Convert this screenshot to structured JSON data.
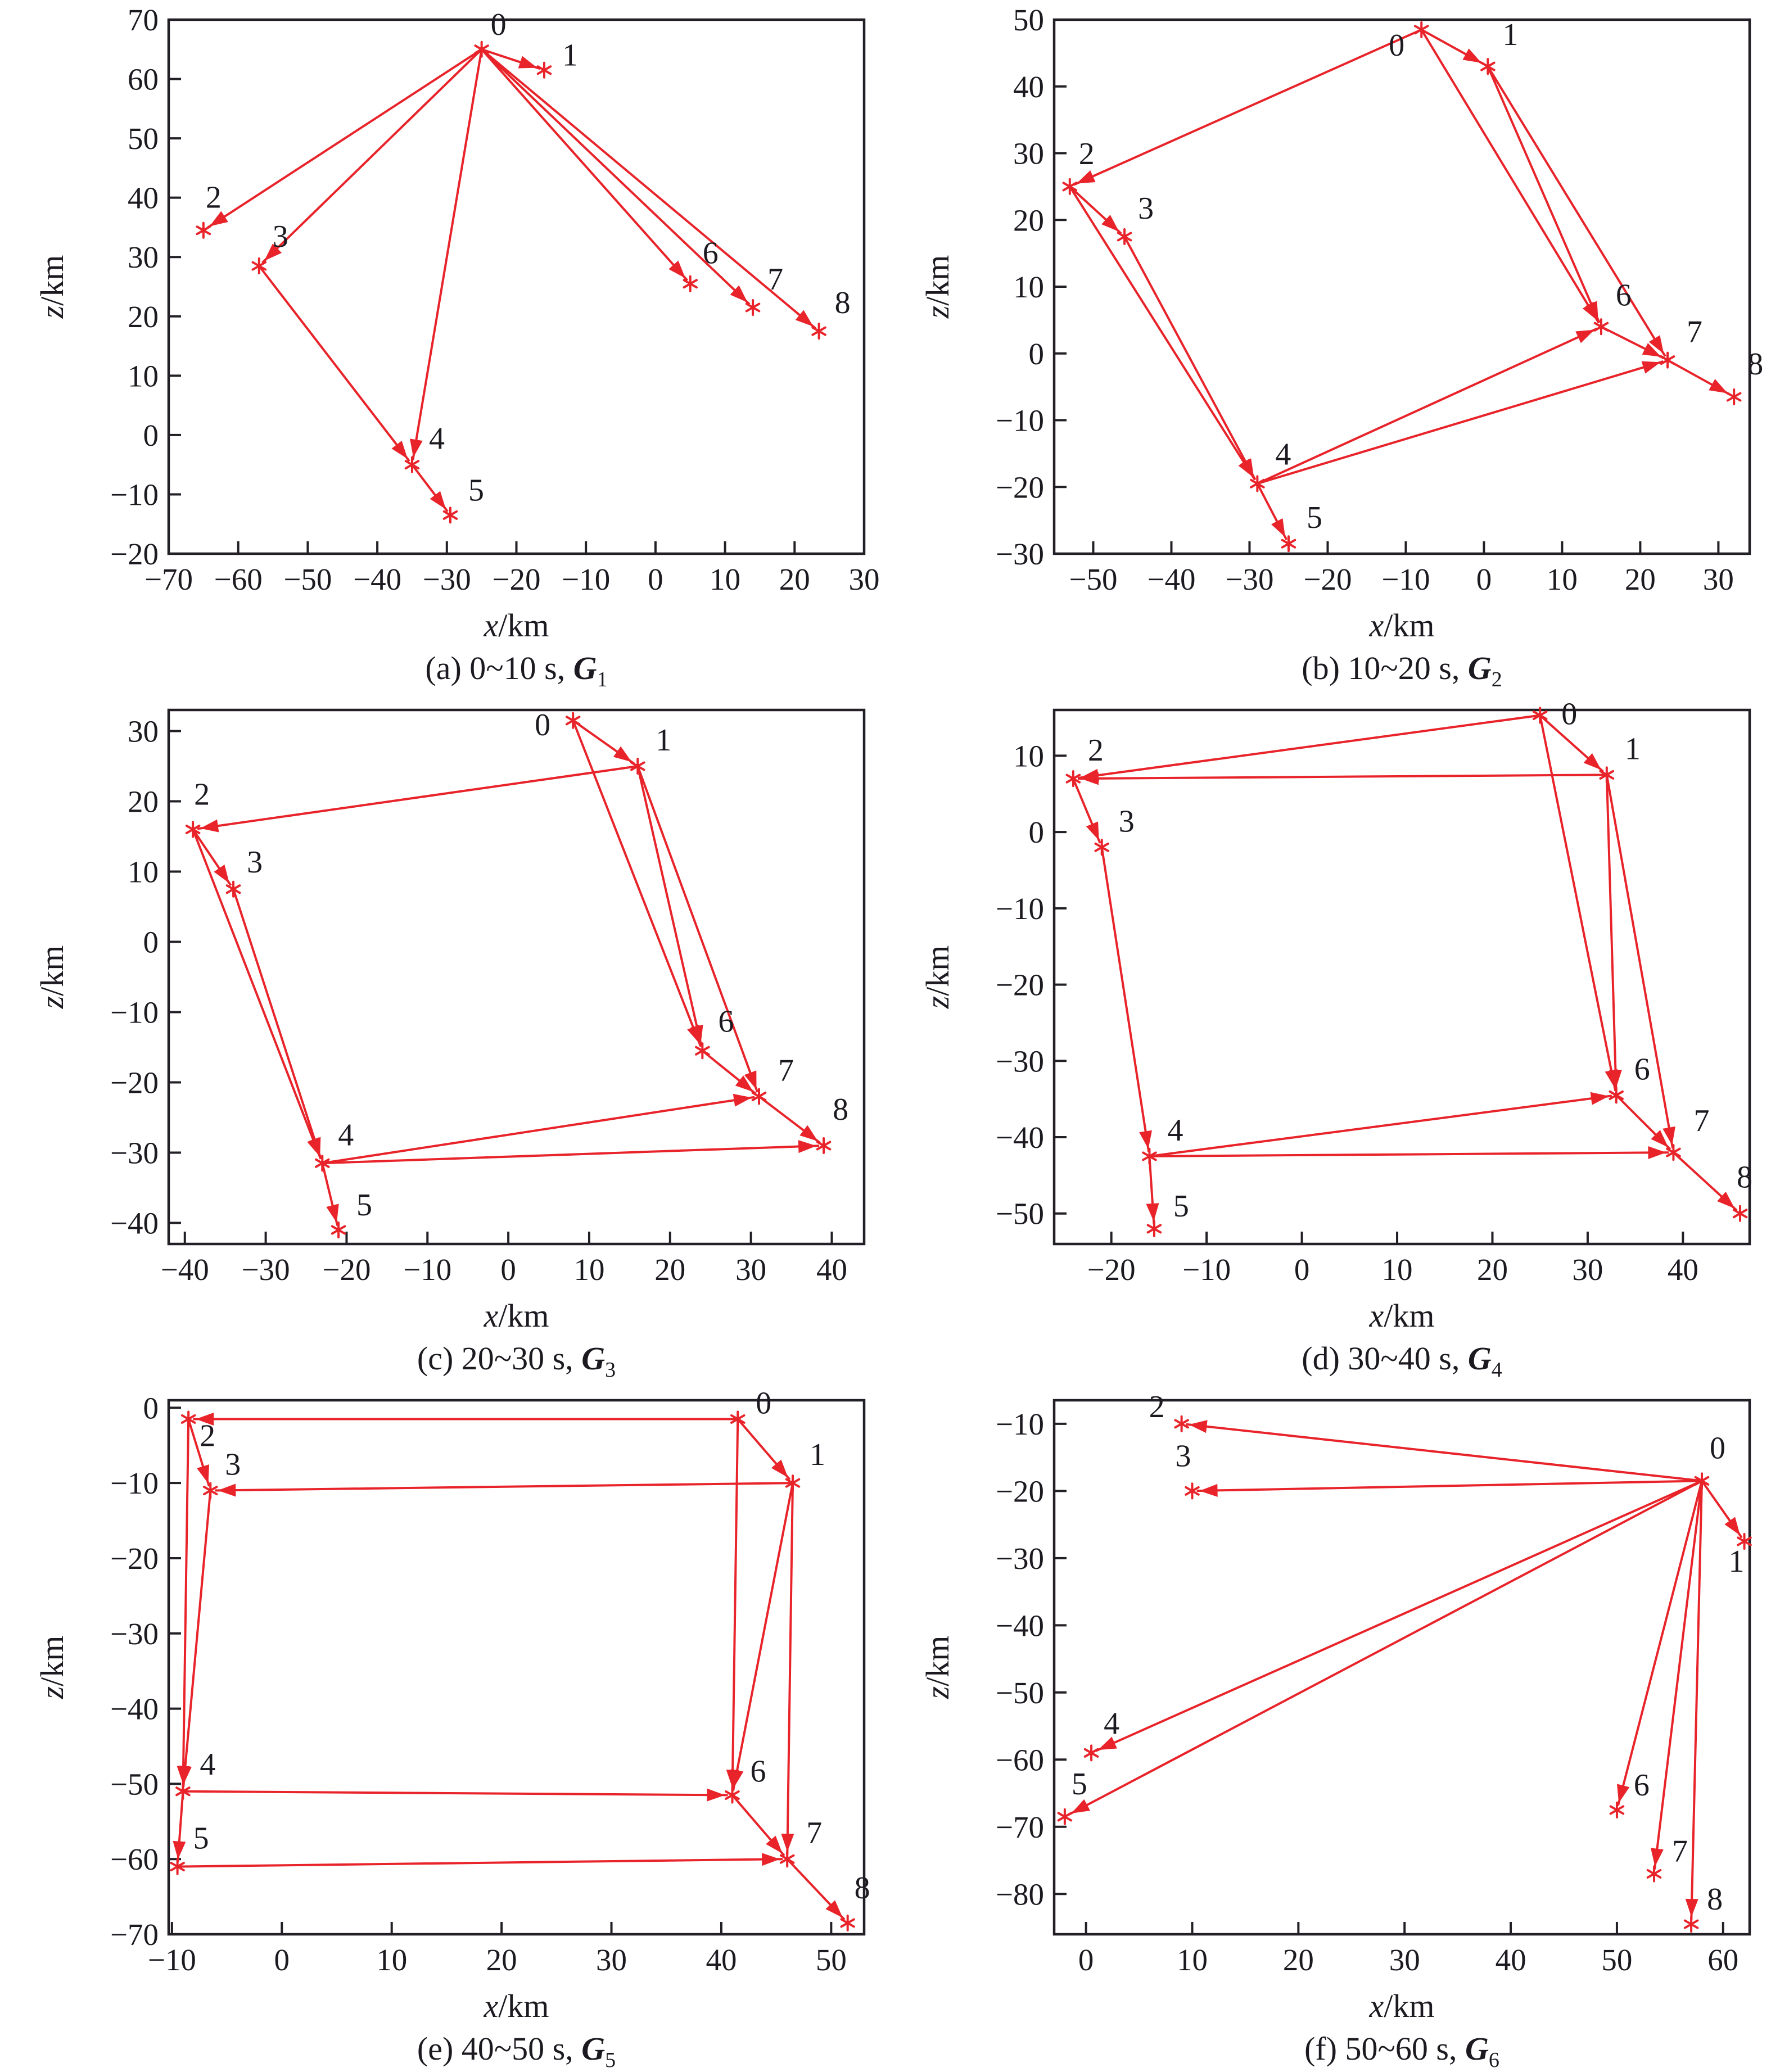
{
  "style": {
    "edge_color": "#e8232a",
    "marker_color": "#e8232a",
    "axis_color": "#231f26",
    "text_color": "#1c1920",
    "background": "#ffffff"
  },
  "axis_labels": {
    "x_var": "x",
    "z_var": "z",
    "unit": "/km"
  },
  "chart_data": [
    {
      "type": "scatter",
      "letter": "a",
      "caption": {
        "prefix": "(a) 0~10 s, ",
        "symbol": "G",
        "sub": "1"
      },
      "xlabel": "x/km",
      "ylabel": "z/km",
      "xlim": [
        -70,
        30
      ],
      "zlim": [
        -20,
        70
      ],
      "xticks": [
        -70,
        -60,
        -50,
        -40,
        -30,
        -20,
        -10,
        0,
        10,
        20,
        30
      ],
      "zticks": [
        -20,
        -10,
        0,
        10,
        20,
        30,
        40,
        50,
        60,
        70
      ],
      "nodes": [
        {
          "id": "0",
          "x": -25,
          "z": 65,
          "lx": 30,
          "ly": -26
        },
        {
          "id": "1",
          "x": -16,
          "z": 61.5,
          "lx": 46,
          "ly": -8
        },
        {
          "id": "2",
          "x": -65,
          "z": 34.5,
          "lx": 18,
          "ly": -40
        },
        {
          "id": "3",
          "x": -57,
          "z": 28.5,
          "lx": 38,
          "ly": -34
        },
        {
          "id": "4",
          "x": -35,
          "z": -5,
          "lx": 44,
          "ly": -28
        },
        {
          "id": "5",
          "x": -29.5,
          "z": -13.5,
          "lx": 46,
          "ly": -26
        },
        {
          "id": "6",
          "x": 5,
          "z": 25.5,
          "lx": 36,
          "ly": -36
        },
        {
          "id": "7",
          "x": 14,
          "z": 21.5,
          "lx": 40,
          "ly": -32
        },
        {
          "id": "8",
          "x": 23.5,
          "z": 17.5,
          "lx": 42,
          "ly": -32
        }
      ],
      "edges": [
        [
          0,
          1
        ],
        [
          0,
          2
        ],
        [
          0,
          3
        ],
        [
          0,
          4
        ],
        [
          0,
          6
        ],
        [
          0,
          7
        ],
        [
          0,
          8
        ],
        [
          3,
          4
        ],
        [
          4,
          5
        ]
      ]
    },
    {
      "type": "scatter",
      "letter": "b",
      "caption": {
        "prefix": "(b) 10~20 s, ",
        "symbol": "G",
        "sub": "2"
      },
      "xlabel": "x/km",
      "ylabel": "z/km",
      "xlim": [
        -55,
        34
      ],
      "zlim": [
        -30,
        50
      ],
      "xticks": [
        -50,
        -40,
        -30,
        -20,
        -10,
        0,
        10,
        20,
        30
      ],
      "zticks": [
        -30,
        -20,
        -10,
        0,
        10,
        20,
        30,
        40,
        50
      ],
      "nodes": [
        {
          "id": "0",
          "x": -8,
          "z": 48.5,
          "lx": -44,
          "ly": 46
        },
        {
          "id": "1",
          "x": 0.5,
          "z": 43,
          "lx": 40,
          "ly": -38
        },
        {
          "id": "2",
          "x": -53,
          "z": 25,
          "lx": 30,
          "ly": -40
        },
        {
          "id": "3",
          "x": -46,
          "z": 17.5,
          "lx": 38,
          "ly": -32
        },
        {
          "id": "4",
          "x": -29,
          "z": -19.5,
          "lx": 46,
          "ly": -34
        },
        {
          "id": "5",
          "x": -25,
          "z": -28.5,
          "lx": 46,
          "ly": -28
        },
        {
          "id": "6",
          "x": 15,
          "z": 4,
          "lx": 40,
          "ly": -38
        },
        {
          "id": "7",
          "x": 23.5,
          "z": -1,
          "lx": 48,
          "ly": -32
        },
        {
          "id": "8",
          "x": 32,
          "z": -6.5,
          "lx": 38,
          "ly": -40
        }
      ],
      "edges": [
        [
          0,
          1
        ],
        [
          0,
          2
        ],
        [
          0,
          6
        ],
        [
          1,
          6
        ],
        [
          1,
          7
        ],
        [
          2,
          3
        ],
        [
          2,
          4
        ],
        [
          3,
          4
        ],
        [
          4,
          5
        ],
        [
          4,
          6
        ],
        [
          4,
          7
        ],
        [
          6,
          7
        ],
        [
          7,
          8
        ]
      ]
    },
    {
      "type": "scatter",
      "letter": "c",
      "caption": {
        "prefix": "(c) 20~30 s, ",
        "symbol": "G",
        "sub": "3"
      },
      "xlabel": "x/km",
      "ylabel": "z/km",
      "xlim": [
        -42,
        44
      ],
      "zlim": [
        -43,
        33
      ],
      "xticks": [
        -40,
        -30,
        -20,
        -10,
        0,
        10,
        20,
        30,
        40
      ],
      "zticks": [
        -40,
        -30,
        -20,
        -10,
        0,
        10,
        20,
        30
      ],
      "nodes": [
        {
          "id": "0",
          "x": 8,
          "z": 31.5,
          "lx": -54,
          "ly": 26
        },
        {
          "id": "1",
          "x": 16,
          "z": 25,
          "lx": 46,
          "ly": -28
        },
        {
          "id": "2",
          "x": -39,
          "z": 16,
          "lx": 16,
          "ly": -44
        },
        {
          "id": "3",
          "x": -34,
          "z": 7.5,
          "lx": 38,
          "ly": -30
        },
        {
          "id": "4",
          "x": -23,
          "z": -31.5,
          "lx": 42,
          "ly": -32
        },
        {
          "id": "5",
          "x": -21,
          "z": -41,
          "lx": 46,
          "ly": -26
        },
        {
          "id": "6",
          "x": 24,
          "z": -15.5,
          "lx": 42,
          "ly": -34
        },
        {
          "id": "7",
          "x": 31,
          "z": -22,
          "lx": 48,
          "ly": -28
        },
        {
          "id": "8",
          "x": 39,
          "z": -29,
          "lx": 30,
          "ly": -46
        }
      ],
      "edges": [
        [
          0,
          1
        ],
        [
          1,
          2
        ],
        [
          0,
          6
        ],
        [
          1,
          6
        ],
        [
          1,
          7
        ],
        [
          2,
          3
        ],
        [
          2,
          4
        ],
        [
          3,
          4
        ],
        [
          4,
          5
        ],
        [
          4,
          7
        ],
        [
          4,
          8
        ],
        [
          6,
          7
        ],
        [
          7,
          8
        ]
      ]
    },
    {
      "type": "scatter",
      "letter": "d",
      "caption": {
        "prefix": "(d) 30~40 s, ",
        "symbol": "G",
        "sub": "4"
      },
      "xlabel": "x/km",
      "ylabel": "z/km",
      "xlim": [
        -26,
        47
      ],
      "zlim": [
        -54,
        16
      ],
      "xticks": [
        -20,
        -10,
        0,
        10,
        20,
        30,
        40
      ],
      "zticks": [
        -50,
        -40,
        -30,
        -20,
        -10,
        0,
        10
      ],
      "nodes": [
        {
          "id": "0",
          "x": 25,
          "z": 15.3,
          "lx": 52,
          "ly": 16
        },
        {
          "id": "1",
          "x": 32,
          "z": 7.5,
          "lx": 46,
          "ly": -28
        },
        {
          "id": "2",
          "x": -24,
          "z": 7,
          "lx": 40,
          "ly": -32
        },
        {
          "id": "3",
          "x": -21,
          "z": -2,
          "lx": 44,
          "ly": -28
        },
        {
          "id": "4",
          "x": -16,
          "z": -42.5,
          "lx": 46,
          "ly": -28
        },
        {
          "id": "5",
          "x": -15.5,
          "z": -52,
          "lx": 48,
          "ly": -22
        },
        {
          "id": "6",
          "x": 33,
          "z": -34.5,
          "lx": 46,
          "ly": -28
        },
        {
          "id": "7",
          "x": 39,
          "z": -42,
          "lx": 50,
          "ly": -38
        },
        {
          "id": "8",
          "x": 46,
          "z": -50,
          "lx": 8,
          "ly": -46
        }
      ],
      "edges": [
        [
          0,
          1
        ],
        [
          0,
          2
        ],
        [
          1,
          2
        ],
        [
          0,
          6
        ],
        [
          1,
          6
        ],
        [
          1,
          7
        ],
        [
          2,
          3
        ],
        [
          3,
          4
        ],
        [
          4,
          5
        ],
        [
          4,
          6
        ],
        [
          4,
          7
        ],
        [
          6,
          7
        ],
        [
          7,
          8
        ]
      ]
    },
    {
      "type": "scatter",
      "letter": "e",
      "caption": {
        "prefix": "(e) 40~50 s, ",
        "symbol": "G",
        "sub": "5"
      },
      "xlabel": "x/km",
      "ylabel": "z/km",
      "xlim": [
        -10.3,
        53
      ],
      "zlim": [
        -70,
        1
      ],
      "xticks": [
        -10,
        0,
        10,
        20,
        30,
        40,
        50
      ],
      "zticks": [
        -70,
        -60,
        -50,
        -40,
        -30,
        -20,
        -10,
        0
      ],
      "nodes": [
        {
          "id": "0",
          "x": 41.5,
          "z": -1.5,
          "lx": 46,
          "ly": -10
        },
        {
          "id": "1",
          "x": 46.5,
          "z": -10,
          "lx": 44,
          "ly": -32
        },
        {
          "id": "2",
          "x": -8.5,
          "z": -1.5,
          "lx": 34,
          "ly": 48
        },
        {
          "id": "3",
          "x": -6.5,
          "z": -11,
          "lx": 40,
          "ly": -28
        },
        {
          "id": "4",
          "x": -9,
          "z": -51,
          "lx": 44,
          "ly": -30
        },
        {
          "id": "5",
          "x": -9.5,
          "z": -61,
          "lx": 42,
          "ly": -32
        },
        {
          "id": "6",
          "x": 41,
          "z": -51.5,
          "lx": 46,
          "ly": -24
        },
        {
          "id": "7",
          "x": 46,
          "z": -60,
          "lx": 48,
          "ly": -28
        },
        {
          "id": "8",
          "x": 51.5,
          "z": -68.5,
          "lx": 26,
          "ly": -44
        }
      ],
      "edges": [
        [
          0,
          1
        ],
        [
          0,
          2
        ],
        [
          1,
          3
        ],
        [
          2,
          3
        ],
        [
          2,
          4
        ],
        [
          3,
          4
        ],
        [
          4,
          5
        ],
        [
          0,
          6
        ],
        [
          1,
          6
        ],
        [
          1,
          7
        ],
        [
          4,
          6
        ],
        [
          5,
          7
        ],
        [
          6,
          7
        ],
        [
          7,
          8
        ]
      ]
    },
    {
      "type": "scatter",
      "letter": "f",
      "caption": {
        "prefix": "(f) 50~60 s, ",
        "symbol": "G",
        "sub": "6"
      },
      "xlabel": "x/km",
      "ylabel": "z/km",
      "xlim": [
        -3,
        62.5
      ],
      "zlim": [
        -86,
        -6.5
      ],
      "xticks": [
        0,
        10,
        20,
        30,
        40,
        50,
        60
      ],
      "zticks": [
        -80,
        -70,
        -60,
        -50,
        -40,
        -30,
        -20,
        -10
      ],
      "nodes": [
        {
          "id": "0",
          "x": 58,
          "z": -18.5,
          "lx": 28,
          "ly": -40
        },
        {
          "id": "1",
          "x": 62,
          "z": -27.5,
          "lx": -14,
          "ly": 54
        },
        {
          "id": "2",
          "x": 9,
          "z": -10,
          "lx": -44,
          "ly": -12
        },
        {
          "id": "3",
          "x": 10,
          "z": -20,
          "lx": -16,
          "ly": -44
        },
        {
          "id": "4",
          "x": 0.5,
          "z": -59,
          "lx": 36,
          "ly": -34
        },
        {
          "id": "5",
          "x": -2,
          "z": -68.5,
          "lx": 26,
          "ly": -40
        },
        {
          "id": "6",
          "x": 50,
          "z": -67.5,
          "lx": 44,
          "ly": -26
        },
        {
          "id": "7",
          "x": 53.5,
          "z": -77,
          "lx": 46,
          "ly": -22
        },
        {
          "id": "8",
          "x": 57,
          "z": -84.5,
          "lx": 42,
          "ly": -26
        }
      ],
      "edges": [
        [
          0,
          1
        ],
        [
          0,
          2
        ],
        [
          0,
          3
        ],
        [
          0,
          4
        ],
        [
          0,
          5
        ],
        [
          0,
          6
        ],
        [
          0,
          7
        ],
        [
          0,
          8
        ]
      ]
    }
  ]
}
